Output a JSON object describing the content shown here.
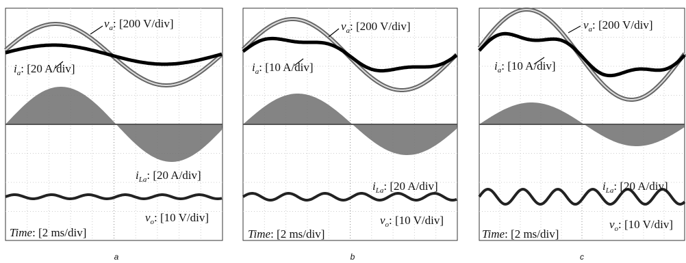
{
  "panels": [
    {
      "caption": "a",
      "labels": [
        {
          "italic": "v",
          "sub": "a",
          "text": ": [200 V/div]"
        },
        {
          "italic": "i",
          "sub": "a",
          "text": ": [20 A/div]"
        },
        {
          "italic": "i",
          "sub": "La",
          "text": ": [20 A/div]"
        },
        {
          "italic": "v",
          "sub": "o",
          "text": ": [10 V/div]"
        },
        {
          "italic": "Time",
          "text": ": [2 ms/div]"
        }
      ]
    },
    {
      "caption": "b",
      "labels": [
        {
          "italic": "v",
          "sub": "a",
          "text": ": [200 V/div]"
        },
        {
          "italic": "i",
          "sub": "a",
          "text": ": [10 A/div]"
        },
        {
          "italic": "i",
          "sub": "La",
          "text": ": [20 A/div]"
        },
        {
          "italic": "v",
          "sub": "o",
          "text": ": [10 V/div]"
        },
        {
          "italic": "Time",
          "text": ": [2 ms/div]"
        }
      ]
    },
    {
      "caption": "c",
      "labels": [
        {
          "italic": "v",
          "sub": "a",
          "text": ": [200 V/div]"
        },
        {
          "italic": "i",
          "sub": "a",
          "text": ": [10 A/div]"
        },
        {
          "italic": "i",
          "sub": "La",
          "text": ": [20 A/div]"
        },
        {
          "italic": "v",
          "sub": "o",
          "text": ": [10 V/div]"
        },
        {
          "italic": "Time",
          "text": ": [2 ms/div]"
        }
      ]
    }
  ]
}
